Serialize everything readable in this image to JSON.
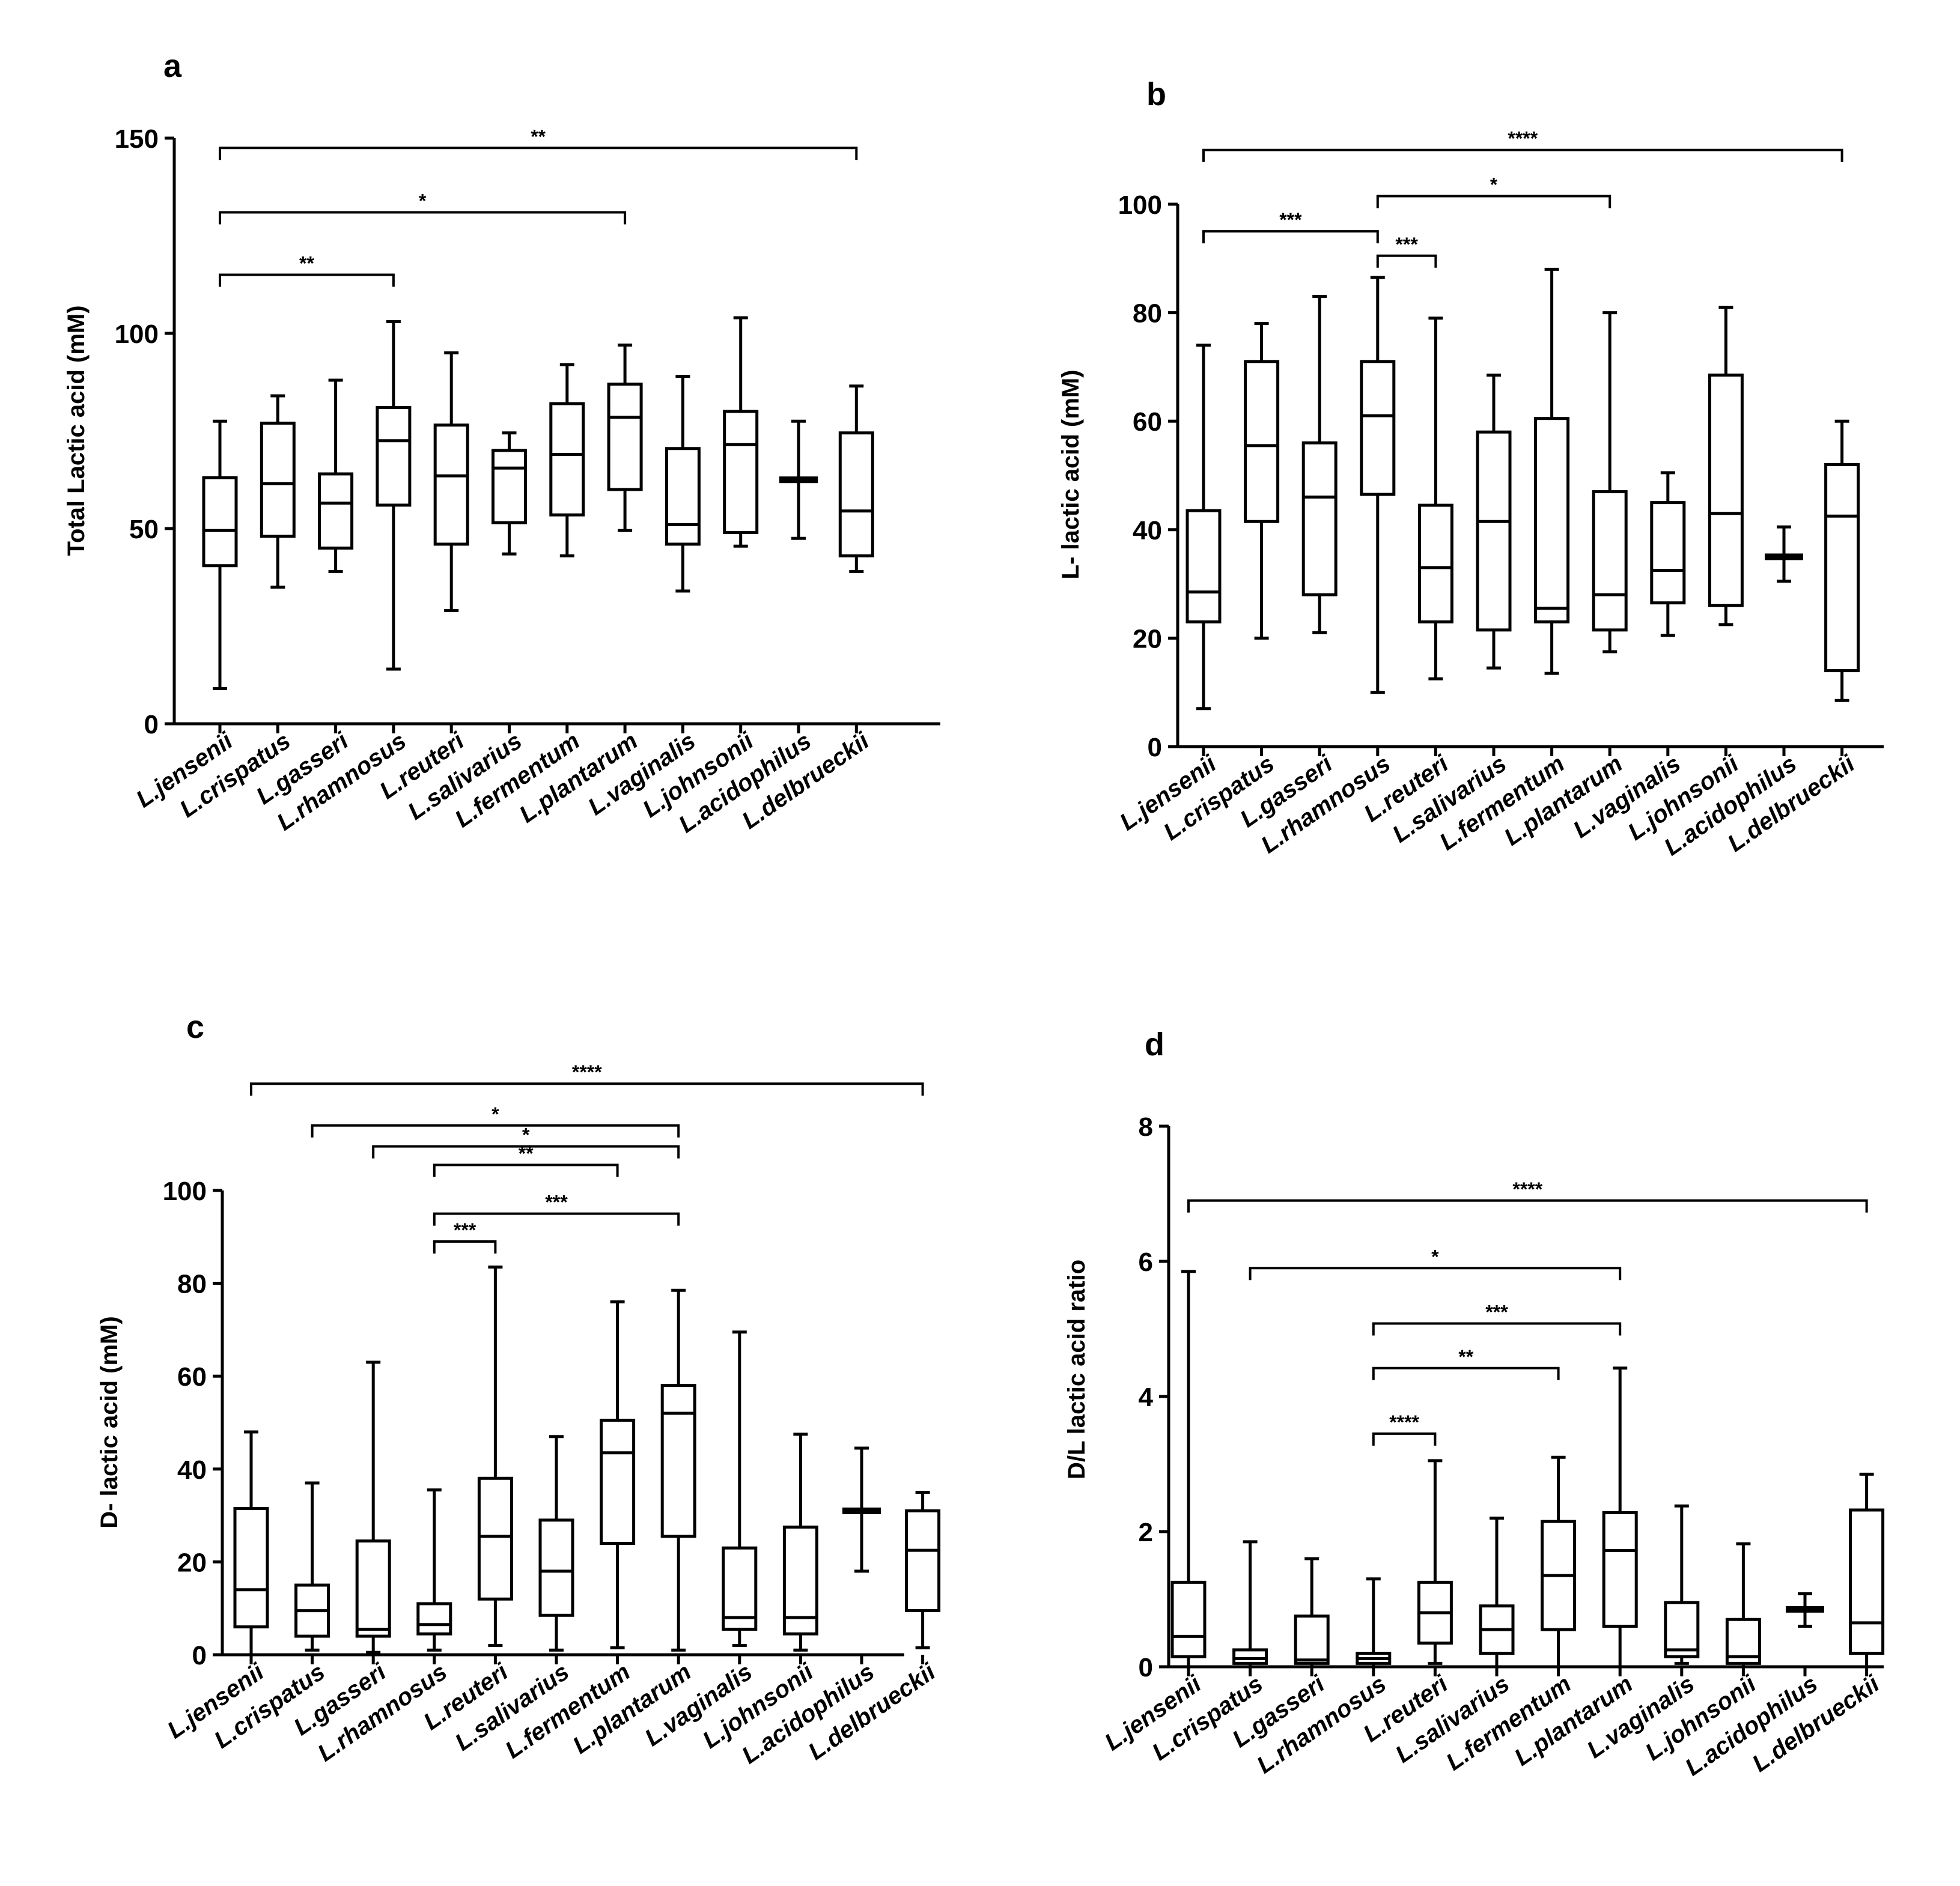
{
  "categories": [
    "L.jensenii",
    "L.crispatus",
    "L.gasseri",
    "L.rhamnosus",
    "L.reuteri",
    "L.salivarius",
    "L.fermentum",
    "L.plantarum",
    "L.vaginalis",
    "L.johnsonii",
    "L.acidophilus",
    "L.delbrueckii"
  ],
  "chart_data": [
    {
      "panel": "a",
      "type": "box",
      "ylabel": "Total Lactic acid (mM)",
      "ylim": [
        0,
        150
      ],
      "yticks": [
        0,
        50,
        100,
        150
      ],
      "boxes": [
        {
          "min": 9,
          "q1": 40.5,
          "median": 49.5,
          "q3": 63,
          "max": 77.5
        },
        {
          "min": 35,
          "q1": 48,
          "median": 61.5,
          "q3": 77,
          "max": 84
        },
        {
          "min": 39,
          "q1": 45,
          "median": 56.5,
          "q3": 64,
          "max": 88
        },
        {
          "min": 14,
          "q1": 56,
          "median": 72.5,
          "q3": 81,
          "max": 103
        },
        {
          "min": 29,
          "q1": 46,
          "median": 63.5,
          "q3": 76.5,
          "max": 95
        },
        {
          "min": 43.5,
          "q1": 51.5,
          "median": 65.5,
          "q3": 70,
          "max": 74.5
        },
        {
          "min": 43,
          "q1": 53.5,
          "median": 69,
          "q3": 82,
          "max": 92
        },
        {
          "min": 49.5,
          "q1": 60,
          "median": 78.5,
          "q3": 87,
          "max": 97
        },
        {
          "min": 34,
          "q1": 46,
          "median": 51,
          "q3": 70.5,
          "max": 89
        },
        {
          "min": 45.5,
          "q1": 49,
          "median": 71.5,
          "q3": 80,
          "max": 104
        },
        {
          "min": 47.5,
          "q1": 62.5,
          "median": 62.5,
          "q3": 62.5,
          "max": 77.5
        },
        {
          "min": 39,
          "q1": 43,
          "median": 54.5,
          "q3": 74.5,
          "max": 86.5
        }
      ],
      "significance": [
        {
          "from": 0,
          "to": 11,
          "y": 147.5,
          "label": "**"
        },
        {
          "from": 0,
          "to": 7,
          "y": 131,
          "label": "*"
        },
        {
          "from": 0,
          "to": 3,
          "y": 115,
          "label": "**"
        }
      ]
    },
    {
      "panel": "b",
      "type": "box",
      "ylabel": "L- lactic acid (mM)",
      "ylim": [
        0,
        100
      ],
      "yticks": [
        0,
        20,
        40,
        60,
        80,
        100
      ],
      "boxes": [
        {
          "min": 7,
          "q1": 23,
          "median": 28.5,
          "q3": 43.5,
          "max": 74
        },
        {
          "min": 20,
          "q1": 41.5,
          "median": 55.5,
          "q3": 71,
          "max": 78
        },
        {
          "min": 21,
          "q1": 28,
          "median": 46,
          "q3": 56,
          "max": 83
        },
        {
          "min": 10,
          "q1": 46.5,
          "median": 61,
          "q3": 71,
          "max": 86.5
        },
        {
          "min": 12.5,
          "q1": 23,
          "median": 33,
          "q3": 44.5,
          "max": 79
        },
        {
          "min": 14.5,
          "q1": 21.5,
          "median": 41.5,
          "q3": 58,
          "max": 68.5
        },
        {
          "min": 13.5,
          "q1": 23,
          "median": 25.5,
          "q3": 60.5,
          "max": 88
        },
        {
          "min": 17.5,
          "q1": 21.5,
          "median": 28,
          "q3": 47,
          "max": 80
        },
        {
          "min": 20.5,
          "q1": 26.5,
          "median": 32.5,
          "q3": 45,
          "max": 50.5
        },
        {
          "min": 22.5,
          "q1": 26,
          "median": 43,
          "q3": 68.5,
          "max": 81
        },
        {
          "min": 30.5,
          "q1": 35,
          "median": 35,
          "q3": 35,
          "max": 40.5
        },
        {
          "min": 8.5,
          "q1": 14,
          "median": 42.5,
          "q3": 52,
          "max": 60
        }
      ],
      "significance": [
        {
          "from": 0,
          "to": 11,
          "y": 110,
          "label": "****"
        },
        {
          "from": 3,
          "to": 7,
          "y": 101.5,
          "label": "*"
        },
        {
          "from": 0,
          "to": 3,
          "y": 95,
          "label": "***"
        },
        {
          "from": 3,
          "to": 4,
          "y": 90.5,
          "label": "***"
        }
      ]
    },
    {
      "panel": "c",
      "type": "box",
      "ylabel": "D- lactic acid (mM)",
      "ylim": [
        0,
        100
      ],
      "yticks": [
        0,
        20,
        40,
        60,
        80,
        100
      ],
      "boxes": [
        {
          "min": 0,
          "q1": 6,
          "median": 14,
          "q3": 31.5,
          "max": 48
        },
        {
          "min": 1,
          "q1": 4,
          "median": 9.5,
          "q3": 15,
          "max": 37
        },
        {
          "min": 0.5,
          "q1": 4,
          "median": 5.5,
          "q3": 24.5,
          "max": 63
        },
        {
          "min": 1,
          "q1": 4.5,
          "median": 6.5,
          "q3": 11,
          "max": 35.5
        },
        {
          "min": 2,
          "q1": 12,
          "median": 25.5,
          "q3": 38,
          "max": 83.5
        },
        {
          "min": 1,
          "q1": 8.5,
          "median": 18,
          "q3": 29,
          "max": 47
        },
        {
          "min": 1.5,
          "q1": 24,
          "median": 43.5,
          "q3": 50.5,
          "max": 76
        },
        {
          "min": 1,
          "q1": 25.5,
          "median": 52,
          "q3": 58,
          "max": 78.5
        },
        {
          "min": 2,
          "q1": 5.5,
          "median": 8,
          "q3": 23,
          "max": 69.5
        },
        {
          "min": 1,
          "q1": 4.5,
          "median": 8,
          "q3": 27.5,
          "max": 47.5
        },
        {
          "min": 18,
          "q1": 31,
          "median": 31,
          "q3": 31,
          "max": 44.5
        },
        {
          "min": 1.5,
          "q1": 9.5,
          "median": 22.5,
          "q3": 31,
          "max": 35
        }
      ],
      "significance": [
        {
          "from": 0,
          "to": 11,
          "y": 123,
          "label": "****"
        },
        {
          "from": 1,
          "to": 7,
          "y": 114,
          "label": "*"
        },
        {
          "from": 2,
          "to": 7,
          "y": 109.5,
          "label": "*"
        },
        {
          "from": 3,
          "to": 6,
          "y": 105.5,
          "label": "**"
        },
        {
          "from": 3,
          "to": 7,
          "y": 95,
          "label": "***"
        },
        {
          "from": 3,
          "to": 4,
          "y": 89,
          "label": "***"
        }
      ]
    },
    {
      "panel": "d",
      "type": "box",
      "ylabel": "D/L lactic acid ratio",
      "ylim": [
        0,
        8
      ],
      "yticks": [
        0,
        2,
        4,
        6,
        8
      ],
      "boxes": [
        {
          "min": 0,
          "q1": 0.15,
          "median": 0.45,
          "q3": 1.25,
          "max": 5.85
        },
        {
          "min": 0,
          "q1": 0.05,
          "median": 0.12,
          "q3": 0.25,
          "max": 1.85
        },
        {
          "min": 0,
          "q1": 0.05,
          "median": 0.1,
          "q3": 0.75,
          "max": 1.6
        },
        {
          "min": 0,
          "q1": 0.05,
          "median": 0.12,
          "q3": 0.2,
          "max": 1.3
        },
        {
          "min": 0.05,
          "q1": 0.35,
          "median": 0.8,
          "q3": 1.25,
          "max": 3.05
        },
        {
          "min": 0,
          "q1": 0.2,
          "median": 0.55,
          "q3": 0.9,
          "max": 2.2
        },
        {
          "min": 0,
          "q1": 0.55,
          "median": 1.35,
          "q3": 2.15,
          "max": 3.1
        },
        {
          "min": 0,
          "q1": 0.6,
          "median": 1.72,
          "q3": 2.28,
          "max": 4.42
        },
        {
          "min": 0.05,
          "q1": 0.15,
          "median": 0.25,
          "q3": 0.95,
          "max": 2.38
        },
        {
          "min": 0,
          "q1": 0.05,
          "median": 0.15,
          "q3": 0.7,
          "max": 1.82
        },
        {
          "min": 0.6,
          "q1": 0.85,
          "median": 0.85,
          "q3": 0.85,
          "max": 1.08
        },
        {
          "min": 0,
          "q1": 0.2,
          "median": 0.65,
          "q3": 2.32,
          "max": 2.85
        }
      ],
      "significance": [
        {
          "from": 0,
          "to": 11,
          "y": 6.9,
          "label": "****"
        },
        {
          "from": 1,
          "to": 7,
          "y": 5.9,
          "label": "*"
        },
        {
          "from": 3,
          "to": 7,
          "y": 5.08,
          "label": "***"
        },
        {
          "from": 3,
          "to": 6,
          "y": 4.42,
          "label": "**"
        },
        {
          "from": 3,
          "to": 4,
          "y": 3.45,
          "label": "****"
        }
      ]
    }
  ]
}
